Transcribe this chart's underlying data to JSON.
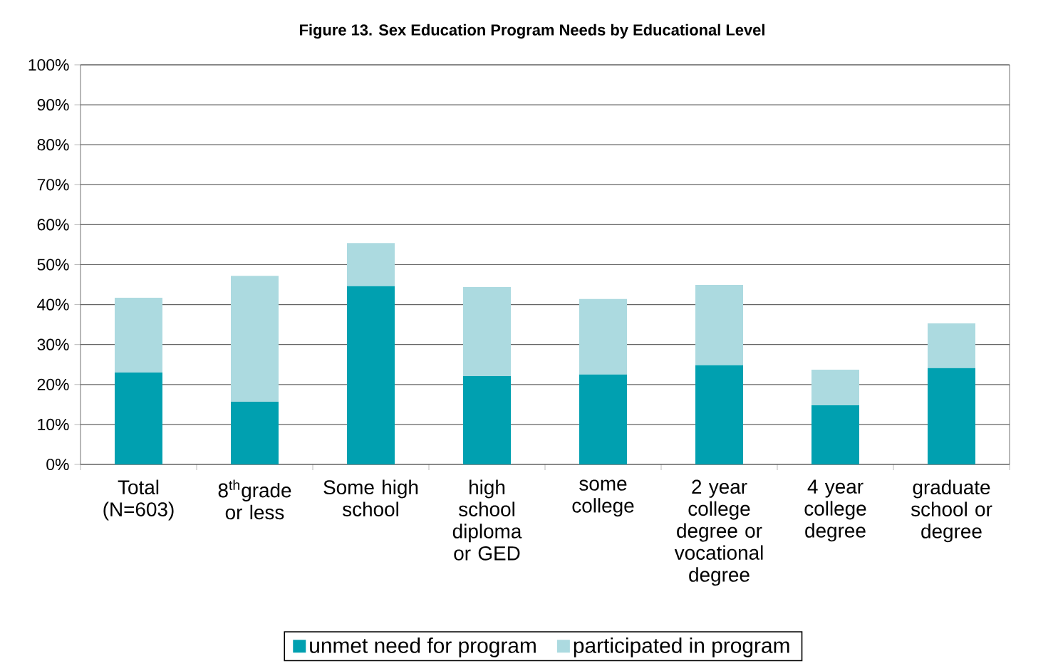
{
  "chart_data": {
    "type": "bar",
    "title": "**Figure 13. Sex Education Program Needs by Educational Level**",
    "categories": [
      "Total (N=603)",
      "8$^{th}$grade or less",
      "Some high school",
      "high school diploma or GED",
      "some college",
      "2 year college degree or vocational degree",
      "4 year college degree",
      "graduate school or degree"
    ],
    "series": [
      {
        "name": "unmet need for program",
        "color": "#00a0b0",
        "values": [
          23,
          15.7,
          44.6,
          22.1,
          22.5,
          24.8,
          14.8,
          24.1
        ]
      },
      {
        "name": "participated in program",
        "color": "#acdae0",
        "values": [
          18.7,
          31.5,
          10.8,
          22.3,
          18.9,
          20.1,
          8.9,
          11.2
        ]
      }
    ],
    "stacked": true,
    "ylim": [
      0,
      100
    ],
    "yticks": [
      {
        "value": 0,
        "label": "0%"
      },
      {
        "value": 10,
        "label": "10%"
      },
      {
        "value": 20,
        "label": "20%"
      },
      {
        "value": 30,
        "label": "30%"
      },
      {
        "value": 40,
        "label": "40%"
      },
      {
        "value": 50,
        "label": "50%"
      },
      {
        "value": 60,
        "label": "60%"
      },
      {
        "value": 70,
        "label": "70%"
      },
      {
        "value": 80,
        "label": "80%"
      },
      {
        "value": 90,
        "label": "90%"
      },
      {
        "value": 100,
        "label": "100%"
      }
    ],
    "grid": "y",
    "legend": "bottom"
  }
}
